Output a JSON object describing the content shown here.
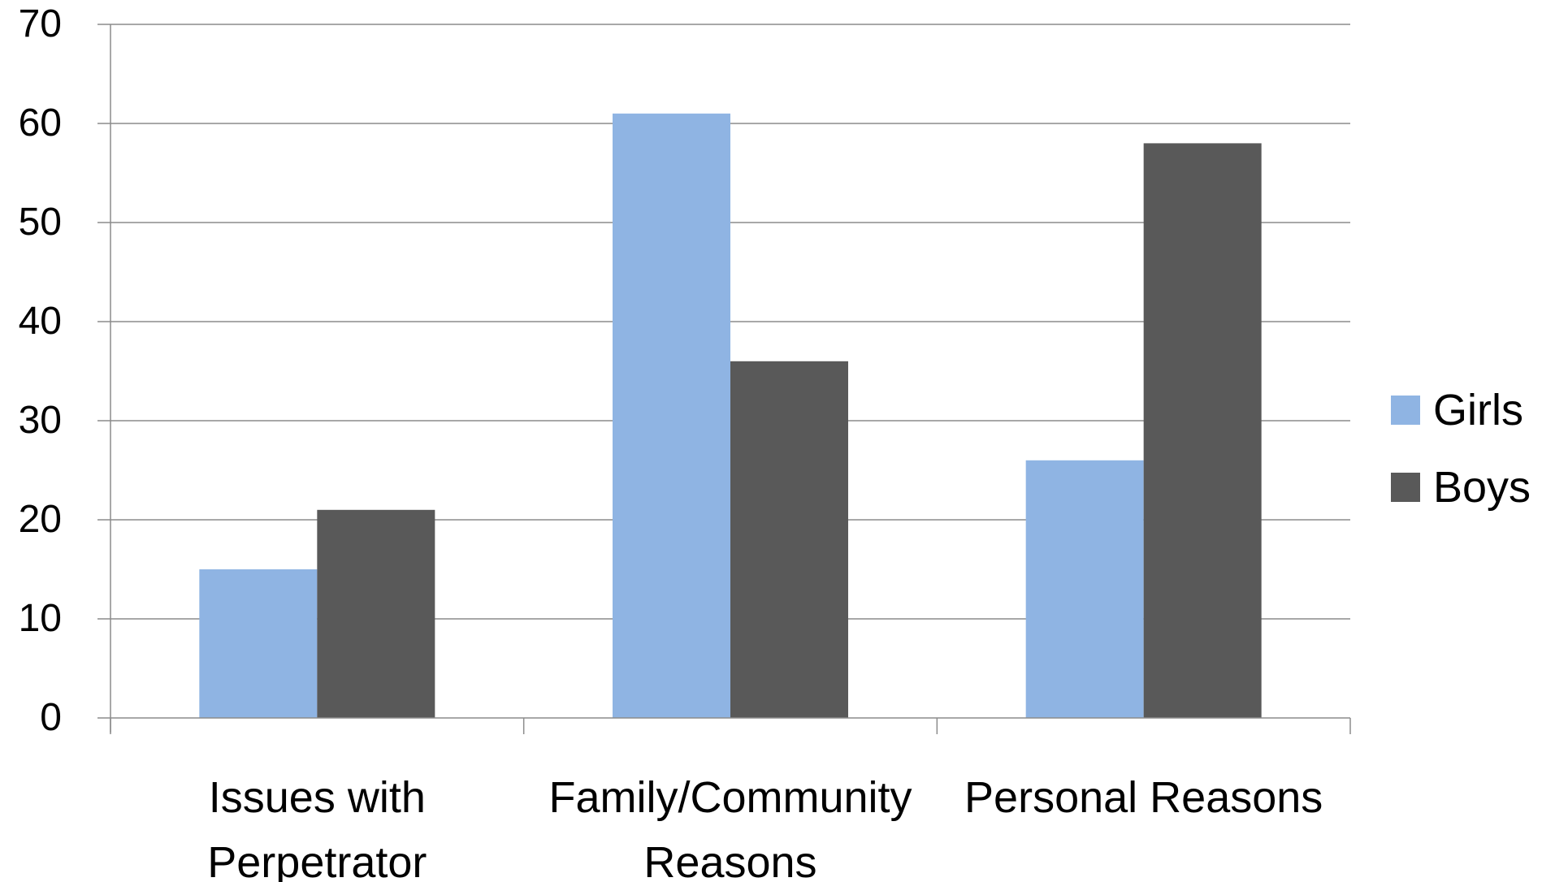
{
  "chart_data": {
    "type": "bar",
    "categories": [
      "Issues with Perpetrator",
      "Family/Community Reasons",
      "Personal Reasons"
    ],
    "category_label_lines": [
      [
        "Issues with",
        "Perpetrator"
      ],
      [
        "Family/Community",
        "Reasons"
      ],
      [
        "Personal Reasons"
      ]
    ],
    "series": [
      {
        "name": "Girls",
        "values": [
          15,
          61,
          26
        ],
        "color": "#8FB4E3"
      },
      {
        "name": "Boys",
        "values": [
          21,
          36,
          58
        ],
        "color": "#595959"
      }
    ],
    "title": "",
    "xlabel": "",
    "ylabel": "",
    "ylim": [
      0,
      70
    ],
    "yticks": [
      0,
      10,
      20,
      30,
      40,
      50,
      60,
      70
    ],
    "grid": true,
    "legend_position": "right"
  }
}
